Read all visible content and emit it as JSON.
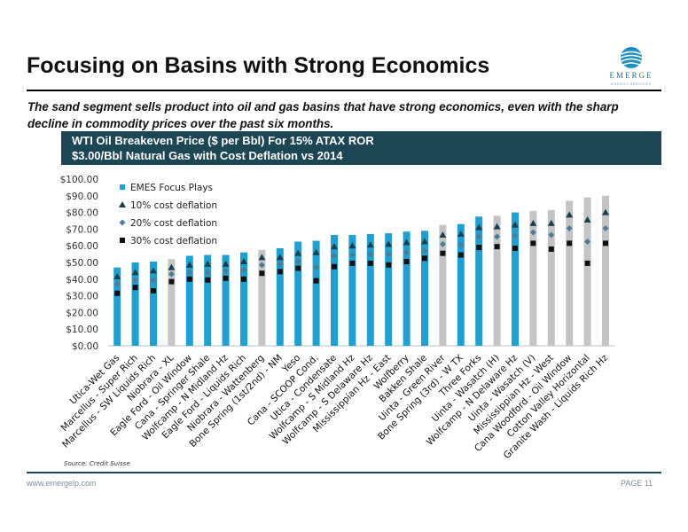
{
  "slide": {
    "title": "Focusing on Basins with Strong Economics",
    "subtitle": "The sand segment sells product into oil and gas basins that have strong economics, even with the sharp decline in commodity prices over the past six months.",
    "logo_text": "EMERGE",
    "logo_subtext": "ENERGY SERVICES",
    "source": "Source:  Credit Suisse",
    "footer_url": "www.emergelp.com",
    "footer_page": "PAGE 11"
  },
  "chart_header": {
    "line1": "WTI Oil Breakeven Price ($ per Bbl) For 15% ATAX ROR",
    "line2": "$3.00/Bbl Natural Gas with Cost Deflation vs 2014"
  },
  "colors": {
    "focus_bar": "#1ba1d6",
    "other_bar": "#c4c4c4",
    "deflation_10": "#1b3f4c",
    "deflation_20": "#4a7d96",
    "deflation_30": "#111111",
    "header_bg": "#1d4654"
  },
  "chart_data": {
    "type": "bar",
    "title": "WTI Oil Breakeven Price ($ per Bbl) For 15% ATAX ROR",
    "ylim": [
      0,
      100
    ],
    "yticks": [
      "$0.00",
      "$10.00",
      "$20.00",
      "$30.00",
      "$40.00",
      "$50.00",
      "$60.00",
      "$70.00",
      "$80.00",
      "$90.00",
      "$100.00"
    ],
    "grid": false,
    "legend_position": "top-left",
    "categories": [
      "Utica-Wet Gas",
      "Marcellus - Super Rich",
      "Marcellus - SW Liquids Rich",
      "Niobrara - XL",
      "Eagle Ford - Oil Window",
      "Cana - Springer Shale",
      "Wolfcamp - N Midland Hz",
      "Eagle Ford - Liquids Rich",
      "Niobrara - Wattenberg",
      "Bone Spring (1st/2nd) - NM",
      "Yeso",
      "Cana - SCOOP Cond.",
      "Utica - Condensate",
      "Wolfcamp - S Midland Hz",
      "Wolfcamp - S Delaware Hz",
      "Mississippian Hz - East",
      "Wolfberry",
      "Bakken Shale",
      "Uinta - Green River",
      "Bone Spring (3rd) - W TX",
      "Three Forks",
      "Uinta - Wasatch (H)",
      "Wolfcamp - N Delaware Hz",
      "Uinta - Wasatch (V)",
      "Mississippian Hz - West",
      "Cana Woodford - Oil Window",
      "Cotton Valley Horizontal",
      "Granite Wash - Liquids Rich Hz"
    ],
    "focus": [
      true,
      true,
      true,
      false,
      true,
      true,
      true,
      true,
      false,
      true,
      true,
      true,
      true,
      true,
      true,
      true,
      true,
      true,
      false,
      true,
      true,
      false,
      true,
      false,
      false,
      false,
      false,
      false
    ],
    "series": [
      {
        "name": "EMES Focus Plays",
        "values": [
          47,
          50,
          50.5,
          52,
          54,
          54.5,
          54.5,
          56,
          57.5,
          58.5,
          62.5,
          63,
          66.5,
          66.5,
          67,
          67.5,
          68.5,
          69,
          72.5,
          73,
          77.5,
          78,
          80,
          81,
          81.5,
          87,
          89,
          90
        ]
      },
      {
        "name": "10% cost deflation",
        "values": [
          41.5,
          44,
          45,
          47,
          48.5,
          49,
          49,
          50.5,
          53,
          53,
          55.5,
          56,
          59.5,
          60,
          60.5,
          61,
          62,
          62.5,
          66.5,
          67,
          71,
          71.5,
          72.5,
          73.5,
          73.5,
          78.5,
          75.5,
          80
        ]
      },
      {
        "name": "20% cost deflation",
        "values": [
          37,
          39.5,
          39.5,
          43,
          44,
          44,
          45,
          45.5,
          48.5,
          49,
          50.5,
          47,
          54,
          54.5,
          55,
          55,
          56,
          57,
          61,
          60.5,
          65.5,
          65.5,
          66,
          68,
          66.5,
          70.5,
          62.5,
          70.5
        ]
      },
      {
        "name": "30% cost deflation",
        "values": [
          31.5,
          35,
          33,
          38.5,
          40,
          39.5,
          40.5,
          40,
          43.5,
          44.5,
          46.5,
          39,
          47.5,
          49.5,
          49.5,
          48.5,
          50.5,
          52.5,
          55.5,
          54.5,
          59,
          59.5,
          58.5,
          61.5,
          58,
          61.5,
          49.5,
          61.5
        ]
      }
    ]
  }
}
